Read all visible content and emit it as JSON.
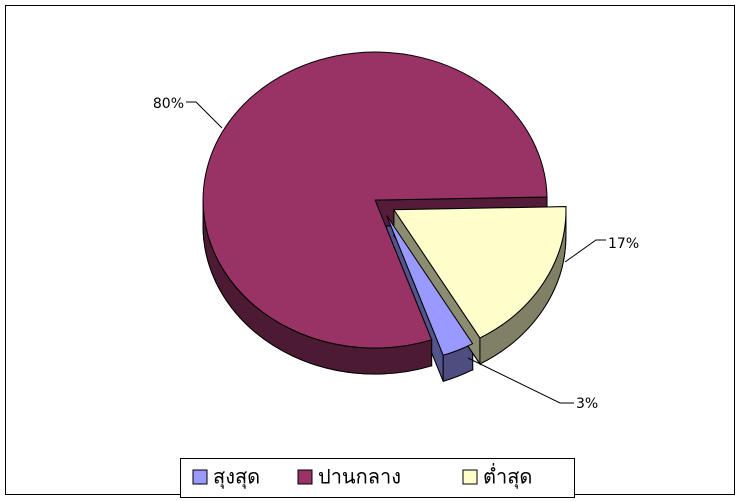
{
  "chart_data": {
    "type": "pie",
    "categories": [
      "สุงสุด",
      "ปานกลาง",
      "ต่ำสุด"
    ],
    "values": [
      3,
      80,
      17
    ],
    "value_labels": [
      "3%",
      "80%",
      "17%"
    ],
    "colors": [
      "#9999ff",
      "#993366",
      "#ffffcc"
    ],
    "legend": "bottom"
  }
}
